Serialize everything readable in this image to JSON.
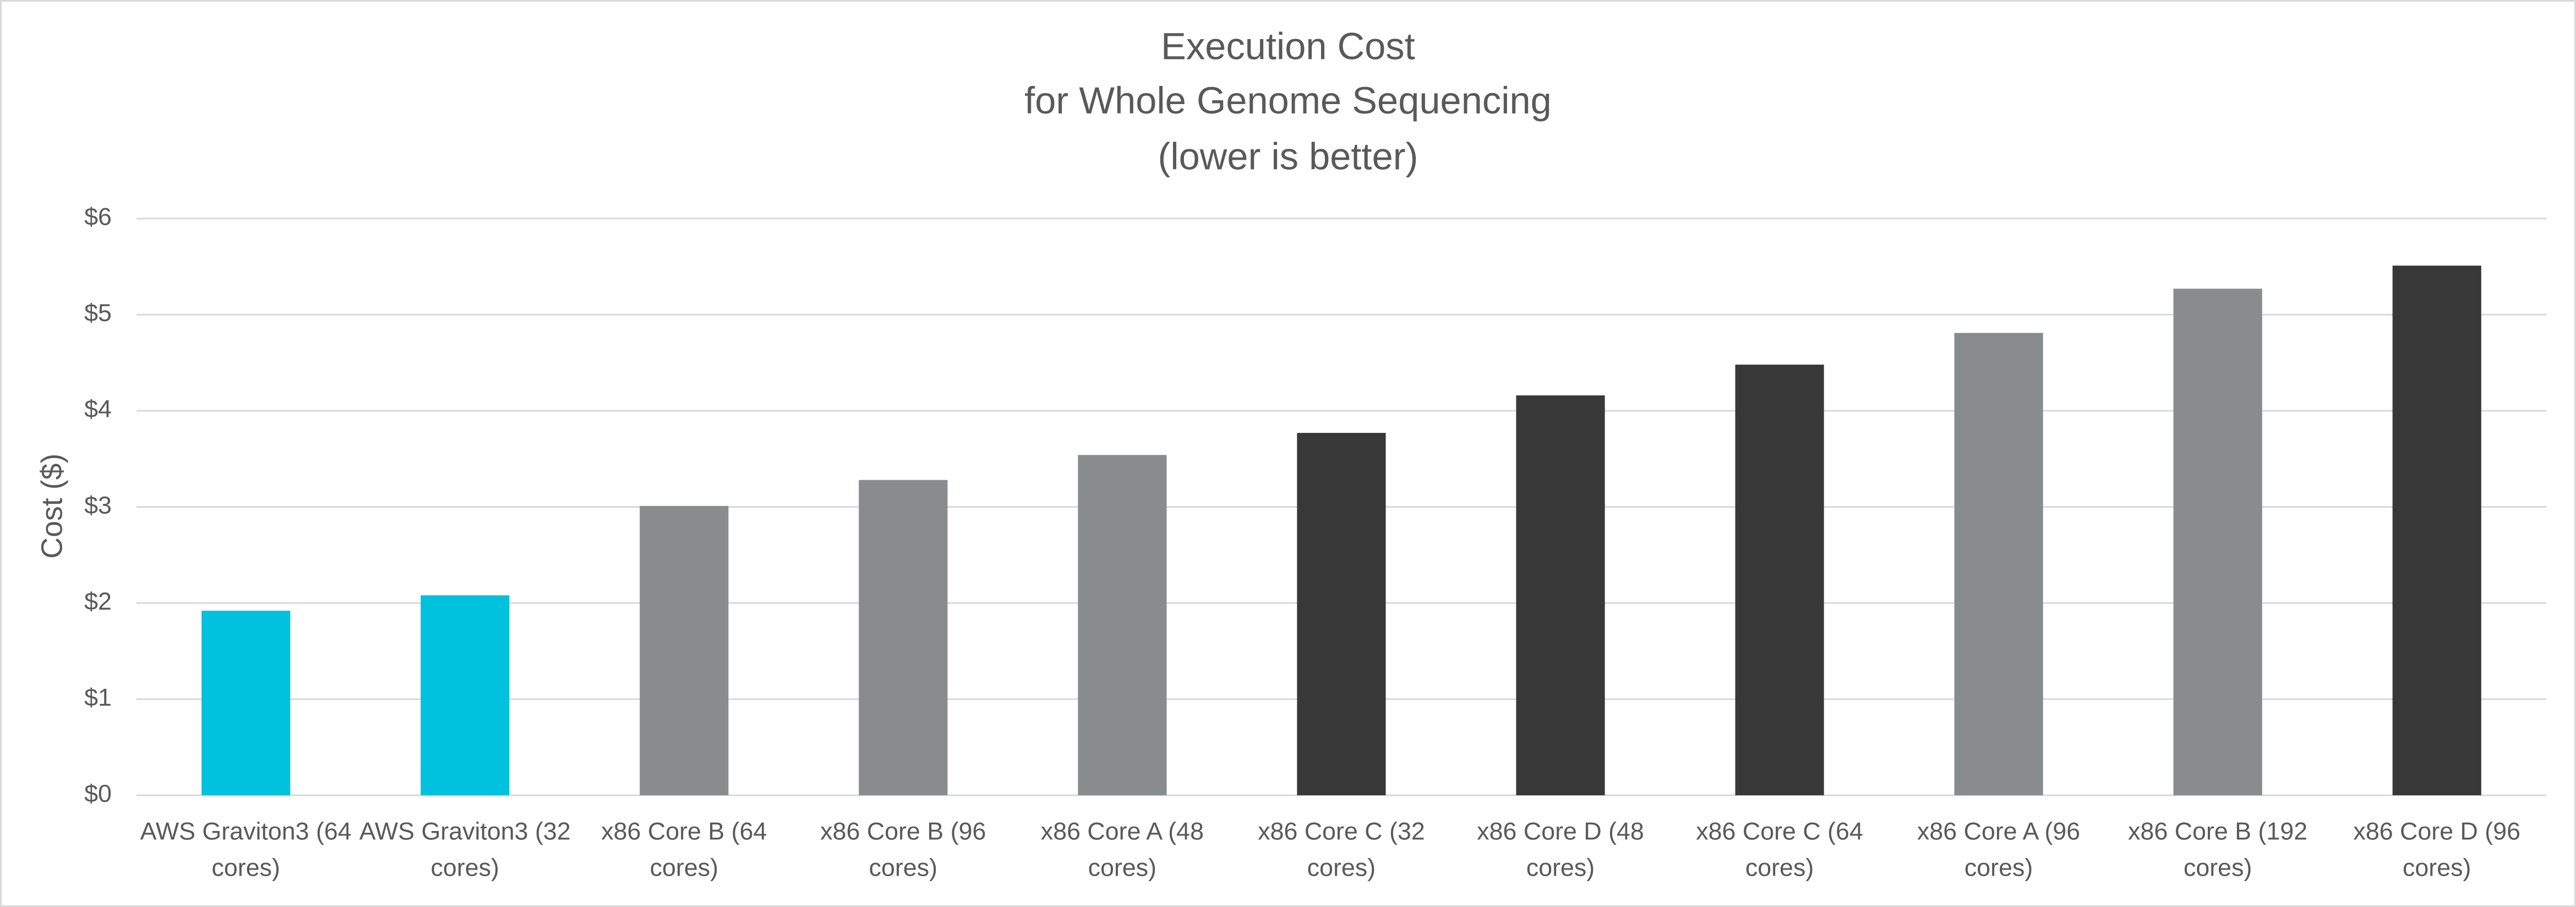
{
  "chart_data": {
    "type": "bar",
    "title": [
      "Execution Cost",
      "for Whole Genome Sequencing",
      "(lower is better)"
    ],
    "y_label": "Cost ($)",
    "categories": [
      "AWS Graviton3 (64 cores)",
      "AWS Graviton3 (32 cores)",
      "x86 Core B (64 cores)",
      "x86 Core B (96 cores)",
      "x86 Core A (48 cores)",
      "x86 Core C (32 cores)",
      "x86 Core D (48 cores)",
      "x86 Core C (64 cores)",
      "x86 Core A (96 cores)",
      "x86 Core B (192 cores)",
      "x86 Core D (96 cores)"
    ],
    "values": [
      1.92,
      2.08,
      3.01,
      3.28,
      3.54,
      3.77,
      4.16,
      4.48,
      4.81,
      5.27,
      5.51
    ],
    "colors": [
      "#00c1de",
      "#00c1de",
      "#898c8c",
      "#898c8c",
      "#898c8c",
      "#383838",
      "#383838",
      "#383838",
      "#898c8c",
      "#898c8c",
      "#383838"
    ],
    "ylim": [
      0,
      6
    ],
    "yticks": [
      {
        "value": 0,
        "label": "$0"
      },
      {
        "value": 1,
        "label": "$1"
      },
      {
        "value": 2,
        "label": "$2"
      },
      {
        "value": 3,
        "label": "$3"
      },
      {
        "value": 4,
        "label": "$4"
      },
      {
        "value": 5,
        "label": "$5"
      },
      {
        "value": 6,
        "label": "$6"
      }
    ],
    "grid": true
  }
}
